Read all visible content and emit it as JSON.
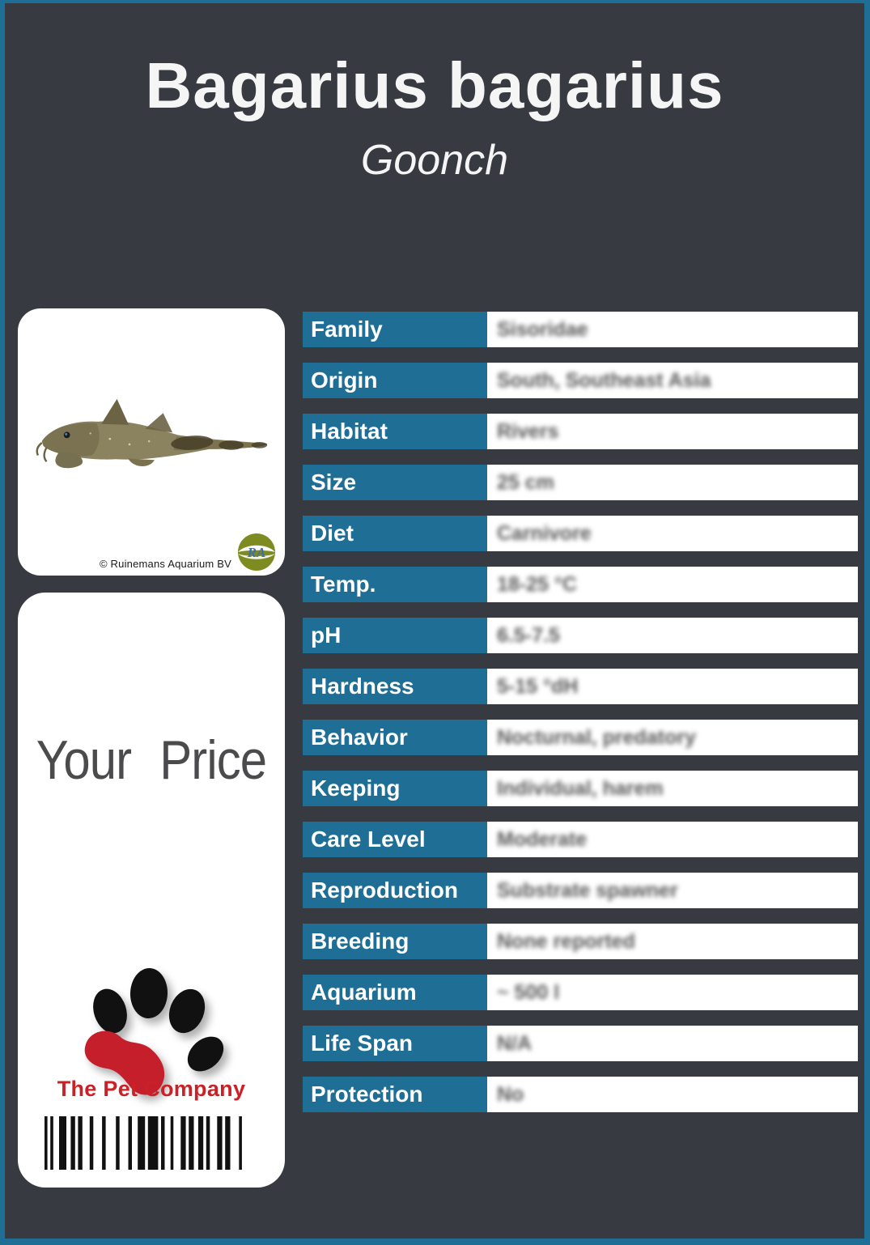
{
  "header": {
    "title": "Bagarius bagarius",
    "subtitle": "Goonch"
  },
  "photo_card": {
    "copyright": "© Ruinemans Aquarium BV",
    "badge_text": "RA"
  },
  "price_card": {
    "price_label": "Your Price",
    "company": "The Pet Company"
  },
  "table": {
    "rows": [
      {
        "label": "Family",
        "value": "Sisoridae"
      },
      {
        "label": "Origin",
        "value": "South, Southeast Asia"
      },
      {
        "label": "Habitat",
        "value": "Rivers"
      },
      {
        "label": "Size",
        "value": "25 cm"
      },
      {
        "label": "Diet",
        "value": "Carnivore"
      },
      {
        "label": "Temp.",
        "value": "18-25 °C"
      },
      {
        "label": "pH",
        "value": "6.5-7.5"
      },
      {
        "label": "Hardness",
        "value": "5-15 °dH"
      },
      {
        "label": "Behavior",
        "value": "Nocturnal, predatory"
      },
      {
        "label": "Keeping",
        "value": "Individual, harem"
      },
      {
        "label": "Care Level",
        "value": "Moderate"
      },
      {
        "label": "Reproduction",
        "value": "Substrate spawner"
      },
      {
        "label": "Breeding",
        "value": "None reported"
      },
      {
        "label": "Aquarium",
        "value": "~ 500 l"
      },
      {
        "label": "Life Span",
        "value": "N/A"
      },
      {
        "label": "Protection",
        "value": "No"
      }
    ]
  },
  "colors": {
    "background": "#383a42",
    "accent_teal": "#1e6e96",
    "brand_red": "#cc2027",
    "price_gray": "#4b4b4d"
  },
  "barcode": {
    "pattern": [
      [
        4,
        4
      ],
      [
        4,
        8
      ],
      [
        10,
        6
      ],
      [
        6,
        4
      ],
      [
        6,
        10
      ],
      [
        5,
        12
      ],
      [
        5,
        14
      ],
      [
        5,
        12
      ],
      [
        5,
        8
      ],
      [
        10,
        4
      ],
      [
        14,
        4
      ],
      [
        5,
        8
      ],
      [
        4,
        10
      ],
      [
        7,
        4
      ],
      [
        7,
        6
      ],
      [
        7,
        4
      ],
      [
        5,
        10
      ],
      [
        7,
        4
      ],
      [
        7,
        12
      ],
      [
        4,
        3
      ],
      [
        11,
        4
      ],
      [
        7,
        3
      ],
      [
        4,
        0
      ]
    ]
  }
}
